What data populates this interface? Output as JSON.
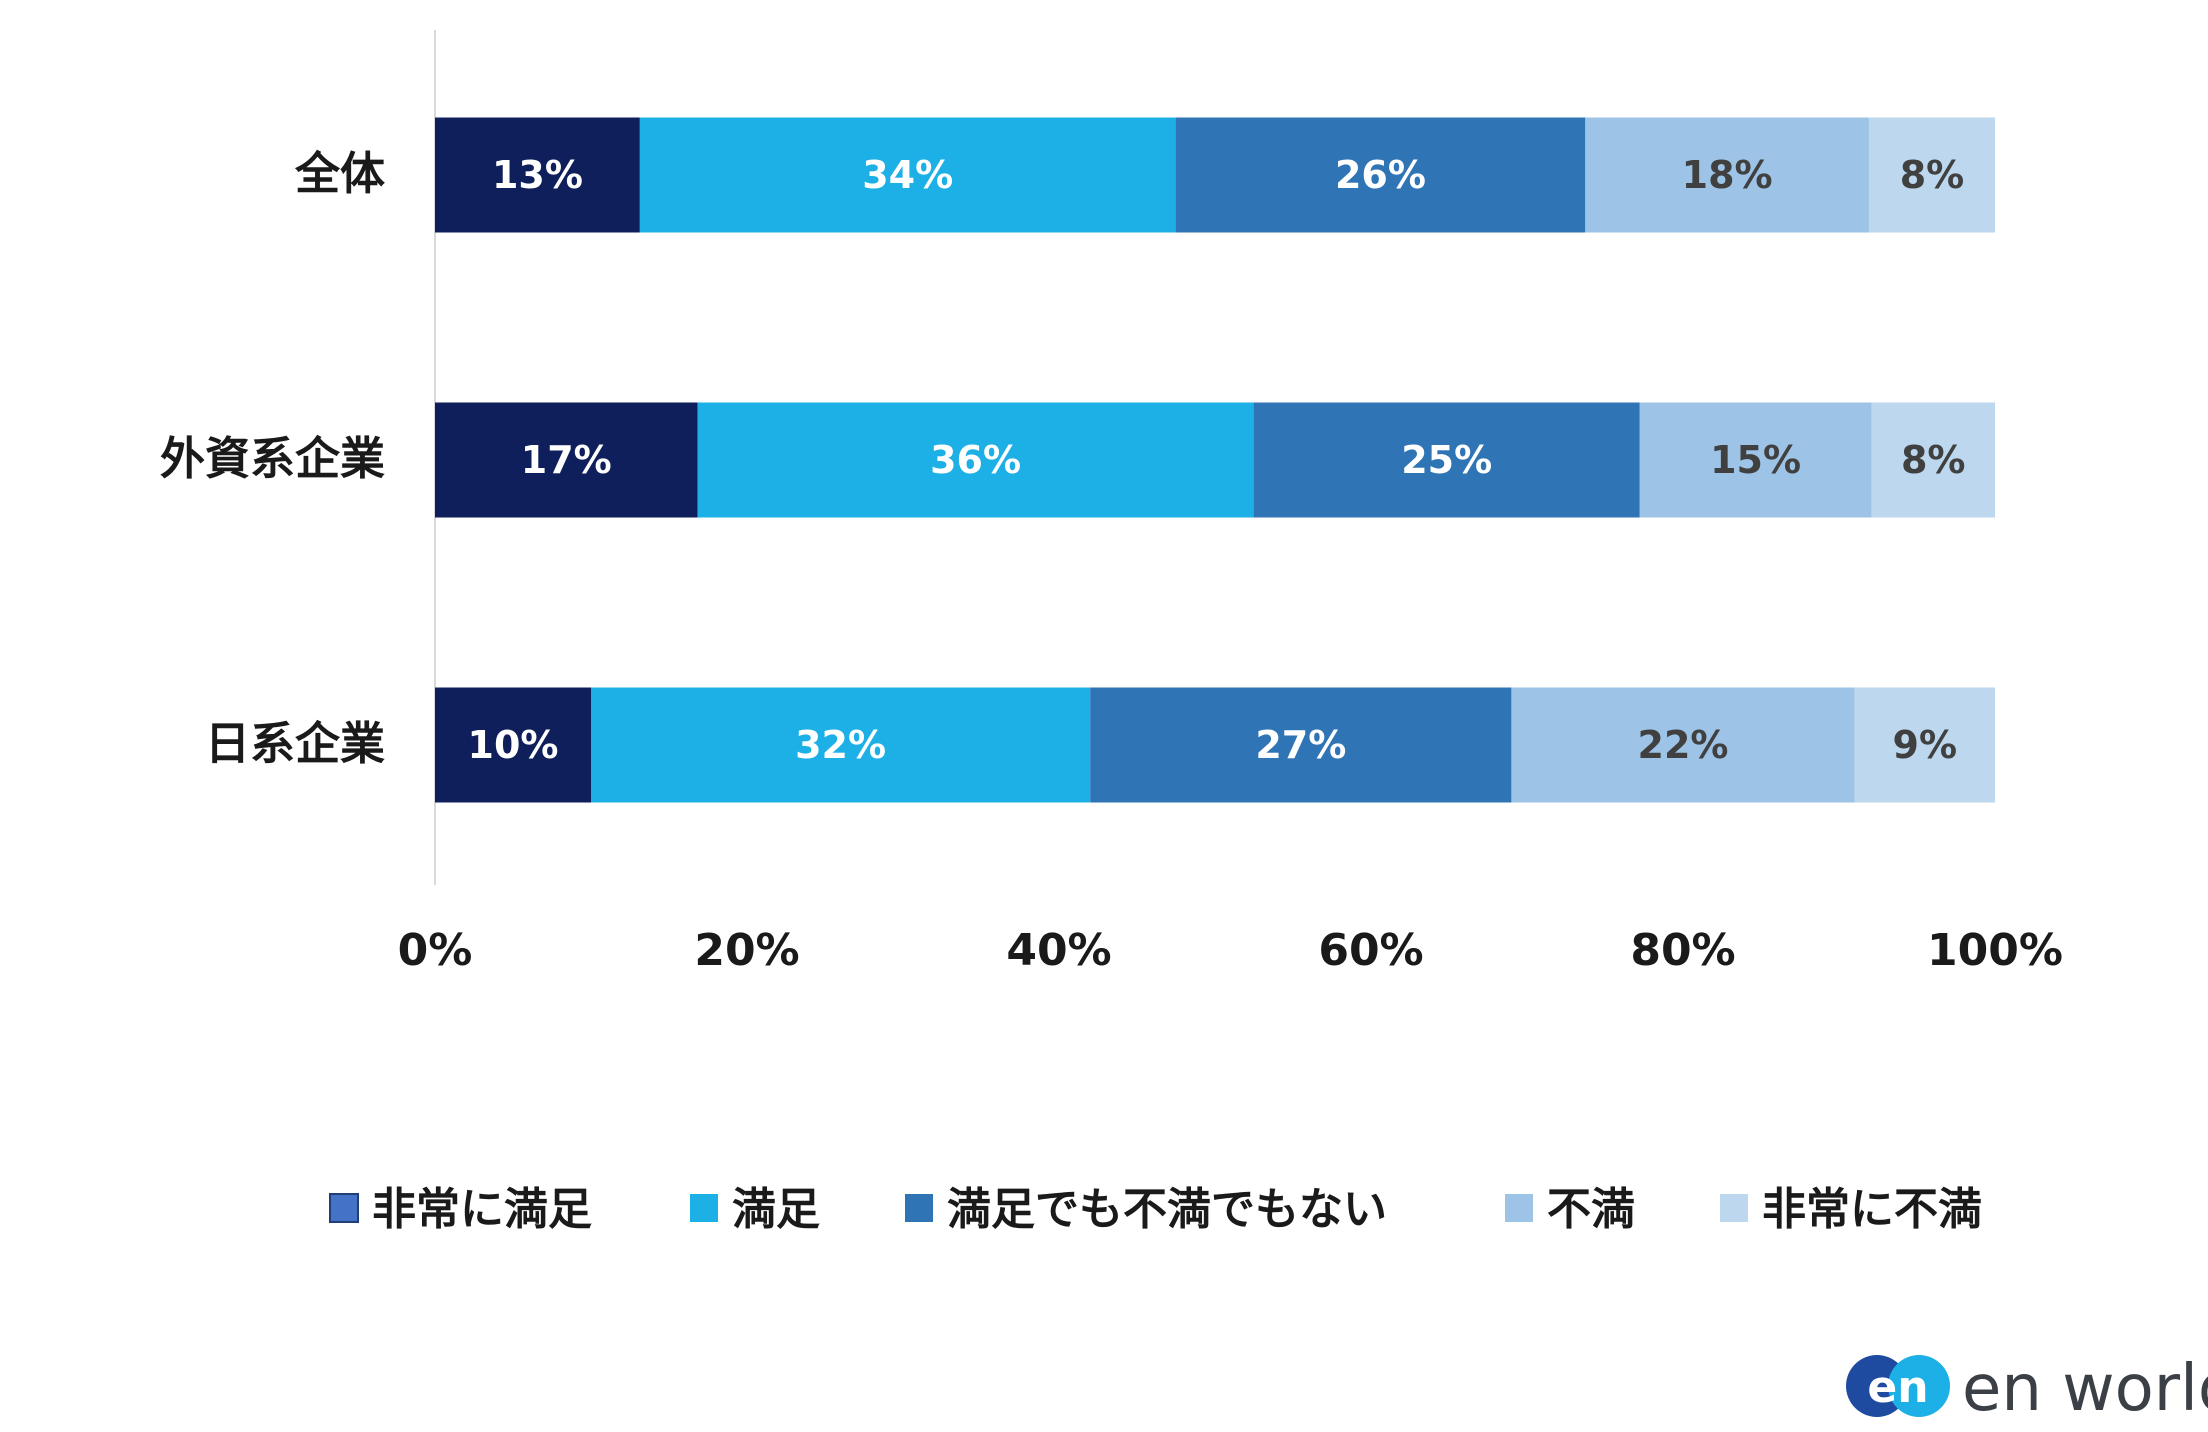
{
  "chart_data": {
    "type": "bar",
    "orientation": "horizontal",
    "stacked": true,
    "categories": [
      "全体",
      "外資系企業",
      "日系企業"
    ],
    "series": [
      {
        "name": "非常に満足",
        "color": "#0e1f5b",
        "legend_color": "#4472c4",
        "values": [
          13,
          17,
          10
        ],
        "labels": [
          "13%",
          "17%",
          "10%"
        ]
      },
      {
        "name": "満足",
        "color": "#1cb0e6",
        "values": [
          34,
          36,
          32
        ],
        "labels": [
          "34%",
          "36%",
          "32%"
        ]
      },
      {
        "name": "満足でも不満でもない",
        "color": "#2f74b5",
        "values": [
          26,
          25,
          27
        ],
        "labels": [
          "26%",
          "25%",
          "27%"
        ]
      },
      {
        "name": "不満",
        "color": "#9dc3e6",
        "values": [
          18,
          15,
          22
        ],
        "labels": [
          "18%",
          "15%",
          "22%"
        ]
      },
      {
        "name": "非常に不満",
        "color": "#bdd7ee",
        "values": [
          8,
          8,
          9
        ],
        "labels": [
          "8%",
          "8%",
          "9%"
        ]
      }
    ],
    "xlim": [
      0,
      100
    ],
    "xticks": [
      "0%",
      "20%",
      "40%",
      "60%",
      "80%",
      "100%"
    ],
    "grid": false,
    "legend_position": "bottom",
    "label_colors": {
      "dark_bg": "#ffffff",
      "light_bg": "#404040"
    }
  },
  "logo": {
    "text": "en world",
    "mark": "en",
    "mark_color": "#1e4aa0",
    "mark_accent": "#1cb0e6"
  }
}
